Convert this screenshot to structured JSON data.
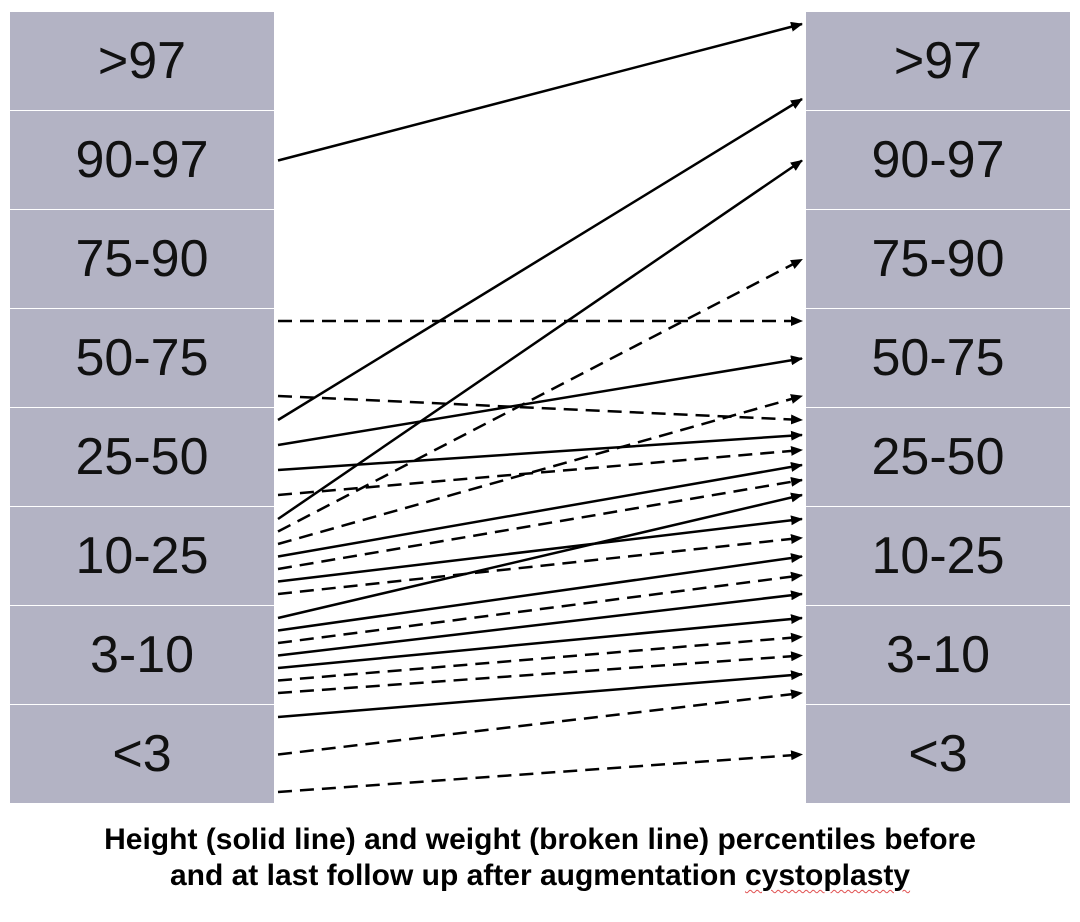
{
  "categories": [
    ">97",
    "90-97",
    "75-90",
    "50-75",
    "25-50",
    "10-25",
    "3-10",
    "<3"
  ],
  "left_column": {
    "labels": [
      ">97",
      "90-97",
      "75-90",
      "50-75",
      "25-50",
      "10-25",
      "3-10",
      "<3"
    ]
  },
  "right_column": {
    "labels": [
      ">97",
      "90-97",
      "75-90",
      "50-75",
      "25-50",
      "10-25",
      "3-10",
      "<3"
    ]
  },
  "caption": {
    "line1": "Height (solid line) and weight (broken line) percentiles before",
    "line2_prefix": "and at last follow up after augmentation ",
    "line2_flagged_word": "cystoplasty"
  },
  "style": {
    "box_color": "#b3b3c4",
    "line_color": "#000000",
    "spellcheck_underline_color": "#e05050"
  },
  "legend": {
    "solid": "height",
    "dashed": "weight"
  },
  "transitions": [
    {
      "measure": "height",
      "from": "90-97",
      "to": ">97"
    },
    {
      "measure": "height",
      "from": "25-50",
      "to": ">97"
    },
    {
      "measure": "height",
      "from": "10-25",
      "to": "90-97"
    },
    {
      "measure": "weight",
      "from": "50-75",
      "to": "50-75"
    },
    {
      "measure": "weight",
      "from": "50-75",
      "to": "25-50"
    },
    {
      "measure": "weight",
      "from": "10-25",
      "to": "75-90"
    },
    {
      "measure": "height",
      "from": "25-50",
      "to": "50-75"
    },
    {
      "measure": "height",
      "from": "25-50",
      "to": "25-50"
    },
    {
      "measure": "weight",
      "from": "10-25",
      "to": "50-75"
    },
    {
      "measure": "weight",
      "from": "25-50",
      "to": "25-50"
    },
    {
      "measure": "height",
      "from": "10-25",
      "to": "25-50"
    },
    {
      "measure": "weight",
      "from": "10-25",
      "to": "25-50"
    },
    {
      "measure": "height",
      "from": "10-25",
      "to": "10-25"
    },
    {
      "measure": "weight",
      "from": "10-25",
      "to": "10-25"
    },
    {
      "measure": "height",
      "from": "3-10",
      "to": "25-50"
    },
    {
      "measure": "height",
      "from": "3-10",
      "to": "10-25"
    },
    {
      "measure": "weight",
      "from": "3-10",
      "to": "10-25"
    },
    {
      "measure": "height",
      "from": "3-10",
      "to": "10-25"
    },
    {
      "measure": "height",
      "from": "3-10",
      "to": "3-10"
    },
    {
      "measure": "weight",
      "from": "3-10",
      "to": "3-10"
    },
    {
      "measure": "weight",
      "from": "3-10",
      "to": "3-10"
    },
    {
      "measure": "height",
      "from": "<3",
      "to": "3-10"
    },
    {
      "measure": "weight",
      "from": "<3",
      "to": "3-10"
    },
    {
      "measure": "weight",
      "from": "<3",
      "to": "<3"
    }
  ]
}
